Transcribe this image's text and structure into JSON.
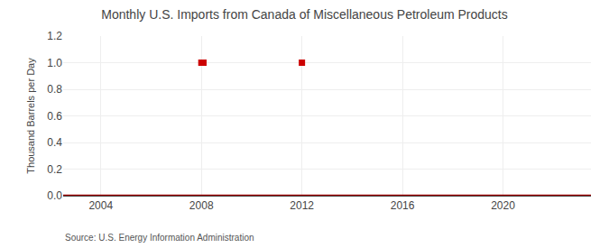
{
  "chart_data": {
    "type": "scatter",
    "title": "Monthly U.S. Imports from Canada of Miscellaneous Petroleum Products",
    "y_label": "Thousand Barrels per Day",
    "annotations": [
      "Source: U.S. Energy Information Administration"
    ],
    "x": [
      2008.0,
      2008.083,
      2012.0
    ],
    "values": [
      1.0,
      1.0,
      1.0
    ],
    "color": "#cc0000",
    "marker": "square",
    "reference_lines": [
      {
        "axis": "y",
        "value": 0.0,
        "color": "#990000"
      }
    ],
    "xlim": [
      2002.5,
      2023.5
    ],
    "xticks": [
      2004,
      2008,
      2012,
      2016,
      2020
    ],
    "ylim": [
      0.0,
      1.2
    ],
    "yticks": [
      {
        "value": 0.0,
        "label": "0.0"
      },
      {
        "value": 0.2,
        "label": "0.2"
      },
      {
        "value": 0.4,
        "label": "0.4"
      },
      {
        "value": 0.6,
        "label": "0.6"
      },
      {
        "value": 0.8,
        "label": "0.8"
      },
      {
        "value": 1.0,
        "label": "1.0"
      },
      {
        "value": 1.2,
        "label": "1.2"
      }
    ],
    "grid": true
  }
}
